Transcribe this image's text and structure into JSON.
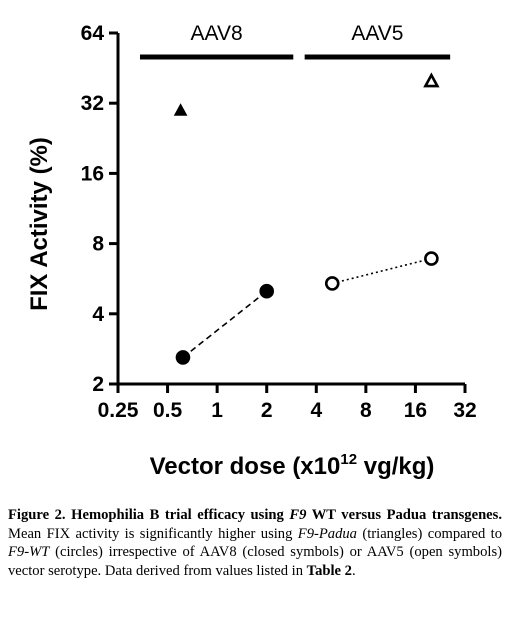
{
  "chart_data": {
    "type": "scatter",
    "title": "",
    "xlabel": "Vector dose (x10",
    "xlabel_sup": "12",
    "xlabel_tail": " vg/kg)",
    "ylabel": "FIX Activity (%)",
    "x_scale": "log2",
    "y_scale": "log2",
    "xlim": [
      0.25,
      32
    ],
    "ylim": [
      2,
      64
    ],
    "x_ticks": [
      0.25,
      0.5,
      1,
      2,
      4,
      8,
      16,
      32
    ],
    "x_tick_labels": [
      "0.25",
      "0.5",
      "1",
      "2",
      "4",
      "8",
      "16",
      "32"
    ],
    "y_ticks": [
      2,
      4,
      8,
      16,
      32,
      64
    ],
    "y_tick_labels": [
      "2",
      "4",
      "8",
      "16",
      "32",
      "64"
    ],
    "grid": false,
    "groups": [
      {
        "label": "AAV8",
        "x_from": 0.34,
        "x_to": 2.9
      },
      {
        "label": "AAV5",
        "x_from": 3.4,
        "x_to": 26
      }
    ],
    "series": [
      {
        "marker": "triangle",
        "filled": true,
        "line": "none",
        "points": [
          {
            "x": 0.6,
            "y": 30
          }
        ]
      },
      {
        "marker": "circle",
        "filled": true,
        "line": "dashed",
        "points": [
          {
            "x": 0.62,
            "y": 2.6
          },
          {
            "x": 2,
            "y": 5
          }
        ]
      },
      {
        "marker": "triangle",
        "filled": false,
        "line": "none",
        "points": [
          {
            "x": 20,
            "y": 40
          }
        ]
      },
      {
        "marker": "circle",
        "filled": false,
        "line": "dotted",
        "points": [
          {
            "x": 5,
            "y": 5.4
          },
          {
            "x": 20,
            "y": 6.9
          }
        ]
      }
    ]
  },
  "caption": {
    "fig_label": "Figure 2.",
    "title_1": " Hemophilia B trial efficacy using ",
    "title_gene": "F9",
    "title_2": " WT versus Padua transgenes.",
    "text_1": " Mean FIX activity is significantly higher using ",
    "padua": "F9-Padua",
    "text_2": " (triangles) compared to ",
    "wt": "F9-WT",
    "text_3": " (circles) irrespective of AAV8 (closed symbols) or AAV5 (open symbols) vector serotype. Data derived from values listed in ",
    "table_ref": "Table 2",
    "text_4": "."
  }
}
